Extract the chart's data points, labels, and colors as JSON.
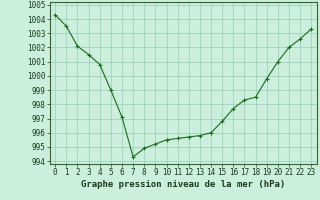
{
  "x": [
    0,
    1,
    2,
    3,
    4,
    5,
    6,
    7,
    8,
    9,
    10,
    11,
    12,
    13,
    14,
    15,
    16,
    17,
    18,
    19,
    20,
    21,
    22,
    23
  ],
  "y": [
    1004.3,
    1003.5,
    1002.1,
    1001.5,
    1000.8,
    999.0,
    997.1,
    994.3,
    994.9,
    995.2,
    995.5,
    995.6,
    995.7,
    995.8,
    996.0,
    996.8,
    997.7,
    998.3,
    998.5,
    999.8,
    1001.0,
    1002.0,
    1002.6,
    1003.3
  ],
  "line_color": "#1a6b1a",
  "marker_color": "#1a6b1a",
  "bg_color": "#cceedd",
  "grid_color": "#99ccbb",
  "xlabel": "Graphe pression niveau de la mer (hPa)",
  "ylim": [
    993.8,
    1005.2
  ],
  "xlim": [
    -0.5,
    23.5
  ],
  "yticks": [
    994,
    995,
    996,
    997,
    998,
    999,
    1000,
    1001,
    1002,
    1003,
    1004,
    1005
  ],
  "xticks": [
    0,
    1,
    2,
    3,
    4,
    5,
    6,
    7,
    8,
    9,
    10,
    11,
    12,
    13,
    14,
    15,
    16,
    17,
    18,
    19,
    20,
    21,
    22,
    23
  ],
  "xlabel_fontsize": 6.5,
  "tick_fontsize": 5.5,
  "marker_size": 2.5,
  "linewidth": 0.8
}
